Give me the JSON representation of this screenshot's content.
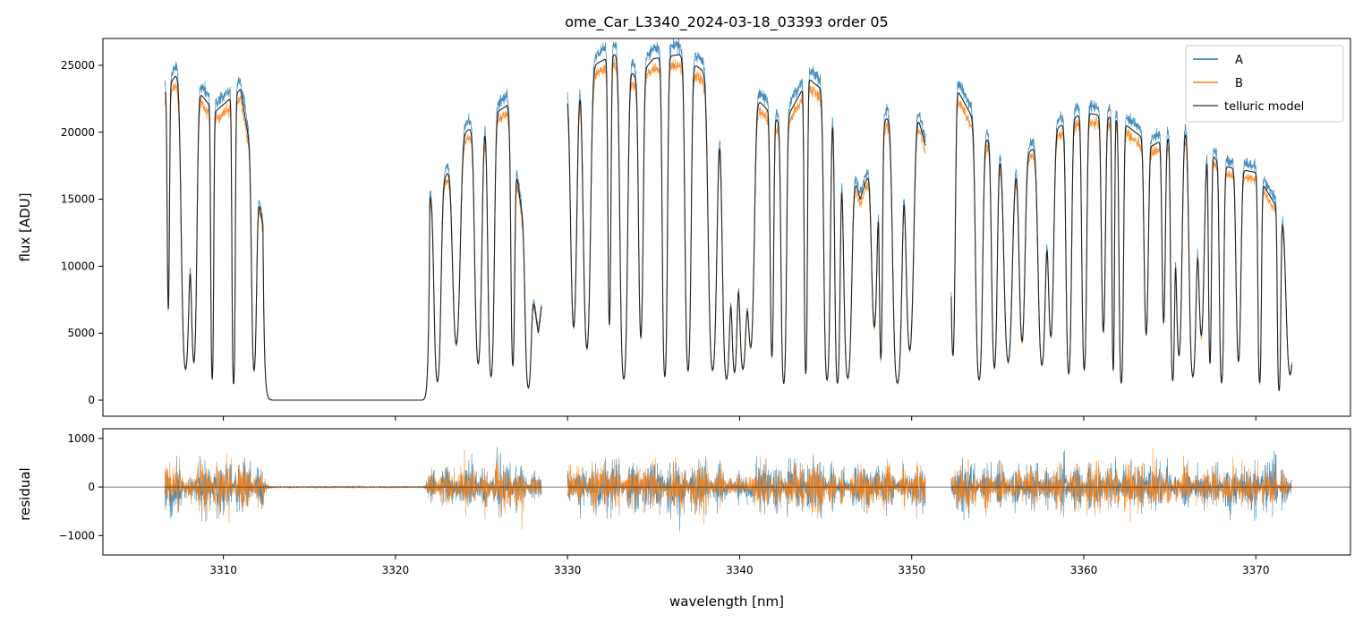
{
  "chart_data": [
    {
      "type": "line",
      "title": "ome_Car_L3340_2024-03-18_03393  order 05",
      "xlabel": "",
      "ylabel": "flux [ADU]",
      "xlim": [
        3303,
        3375.5
      ],
      "ylim": [
        -1200,
        27000
      ],
      "yticks": [
        0,
        5000,
        10000,
        15000,
        20000,
        25000
      ],
      "ytick_labels": [
        "0",
        "5000",
        "10000",
        "15000",
        "20000",
        "25000"
      ],
      "xticks": [
        3310,
        3320,
        3330,
        3340,
        3350,
        3360,
        3370
      ],
      "legend_position": "upper right",
      "legend": [
        "A",
        "B",
        "telluric model"
      ],
      "colors": {
        "A": "#1f77b4",
        "B": "#ff7f0e",
        "telluric model": "#222222"
      },
      "segments_nm": [
        [
          3306.6,
          3328.5
        ],
        [
          3330.0,
          3350.8
        ],
        [
          3352.3,
          3372.1
        ]
      ],
      "continuum_points": {
        "x": [
          3306.6,
          3307.5,
          3309.5,
          3311.0,
          3312.3,
          3322.5,
          3324.0,
          3326.5,
          3328.3,
          3330.0,
          3331.5,
          3333.0,
          3334.0,
          3335.0,
          3336.5,
          3338.0,
          3339.0,
          3341.0,
          3342.5,
          3344.0,
          3345.5,
          3347.0,
          3348.5,
          3350.0,
          3350.8,
          3352.3,
          3354.0,
          3356.0,
          3358.0,
          3360.0,
          3362.0,
          3364.0,
          3366.0,
          3368.0,
          3370.0,
          3372.1
        ],
        "y": [
          23000,
          24800,
          21500,
          23200,
          13000,
          15500,
          20000,
          22000,
          5000,
          23000,
          25000,
          26000,
          24000,
          25500,
          25800,
          24500,
          21500,
          22500,
          20500,
          24000,
          22500,
          15000,
          21000,
          23000,
          19000,
          24000,
          20000,
          17500,
          20000,
          21500,
          21000,
          19000,
          20500,
          17500,
          17000,
          12500
        ]
      },
      "series": [
        {
          "name": "A",
          "values": []
        },
        {
          "name": "B",
          "values": []
        },
        {
          "name": "telluric model",
          "values": []
        }
      ]
    },
    {
      "type": "line",
      "title": "",
      "xlabel": "wavelength [nm]",
      "ylabel": "residual",
      "xlim": [
        3303,
        3375.5
      ],
      "ylim": [
        -1400,
        1200
      ],
      "yticks": [
        -1000,
        0,
        1000
      ],
      "ytick_labels": [
        "−1000",
        "0",
        "1000"
      ],
      "xticks": [
        3310,
        3320,
        3330,
        3340,
        3350,
        3360,
        3370
      ],
      "xtick_labels": [
        "3310",
        "3320",
        "3330",
        "3340",
        "3350",
        "3360",
        "3370"
      ],
      "zero_line": true,
      "series": [
        {
          "name": "A",
          "values": []
        },
        {
          "name": "B",
          "values": []
        }
      ]
    }
  ]
}
